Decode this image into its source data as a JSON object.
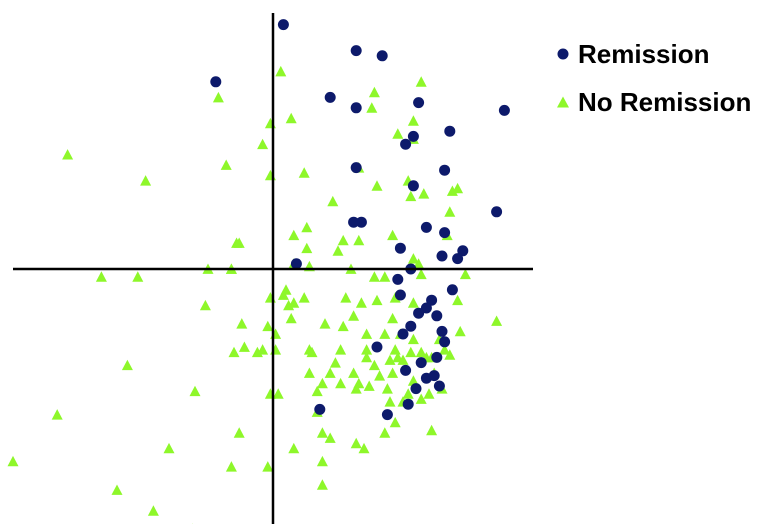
{
  "colors": {
    "remission": "#0d1a6b",
    "no_remission": "#8ef72a",
    "axes": "#000000",
    "background": "#ffffff"
  },
  "legend": {
    "items": [
      {
        "label": "Remission",
        "marker": "circle",
        "color": "#0d1a6b"
      },
      {
        "label": "No Remission",
        "marker": "triangle",
        "color": "#8ef72a"
      }
    ],
    "position": "top-right"
  },
  "chart_data": {
    "type": "scatter",
    "title": "",
    "xlabel": "",
    "ylabel": "",
    "grid": false,
    "axes": "crosshair through origin, no tick labels",
    "xlim": [
      -10,
      10.4
    ],
    "ylim": [
      -10,
      10.4
    ],
    "series": [
      {
        "name": "Remission",
        "marker": "circle",
        "color": "#0d1a6b",
        "points": [
          [
            0.4,
            9.4
          ],
          [
            -2.2,
            7.2
          ],
          [
            3.2,
            8.4
          ],
          [
            4.2,
            8.2
          ],
          [
            2.2,
            6.6
          ],
          [
            3.2,
            6.2
          ],
          [
            5.6,
            6.4
          ],
          [
            8.9,
            6.1
          ],
          [
            5.4,
            5.1
          ],
          [
            5.1,
            4.8
          ],
          [
            6.8,
            5.3
          ],
          [
            3.2,
            3.9
          ],
          [
            5.4,
            3.2
          ],
          [
            6.6,
            3.8
          ],
          [
            8.6,
            2.2
          ],
          [
            3.4,
            1.8
          ],
          [
            3.1,
            1.8
          ],
          [
            5.9,
            1.6
          ],
          [
            6.6,
            1.4
          ],
          [
            4.9,
            0.8
          ],
          [
            7.3,
            0.7
          ],
          [
            7.1,
            0.4
          ],
          [
            6.5,
            0.5
          ],
          [
            0.9,
            0.2
          ],
          [
            5.3,
            0
          ],
          [
            4.8,
            -0.4
          ],
          [
            6.9,
            -0.8
          ],
          [
            4.9,
            -1
          ],
          [
            6.1,
            -1.2
          ],
          [
            5.9,
            -1.5
          ],
          [
            5.6,
            -1.7
          ],
          [
            6.3,
            -1.8
          ],
          [
            6.5,
            -2.4
          ],
          [
            5.3,
            -2.2
          ],
          [
            5.0,
            -2.5
          ],
          [
            4.0,
            -3.0
          ],
          [
            6.6,
            -2.8
          ],
          [
            6.3,
            -3.4
          ],
          [
            5.7,
            -3.6
          ],
          [
            5.1,
            -3.9
          ],
          [
            5.9,
            -4.2
          ],
          [
            6.2,
            -4.1
          ],
          [
            6.4,
            -4.5
          ],
          [
            5.5,
            -4.6
          ],
          [
            5.2,
            -5.2
          ],
          [
            1.8,
            -5.4
          ],
          [
            4.4,
            -5.6
          ]
        ]
      },
      {
        "name": "No Remission",
        "marker": "triangle",
        "color": "#8ef72a",
        "points": [
          [
            -7.9,
            4.4
          ],
          [
            -4.9,
            3.4
          ],
          [
            -2.1,
            6.6
          ],
          [
            0.3,
            7.6
          ],
          [
            -1.8,
            4.0
          ],
          [
            -0.1,
            5.6
          ],
          [
            -0.4,
            4.8
          ],
          [
            0.7,
            5.8
          ],
          [
            -0.1,
            3.6
          ],
          [
            1.2,
            3.7
          ],
          [
            3.8,
            6.2
          ],
          [
            3.9,
            6.8
          ],
          [
            5.7,
            7.2
          ],
          [
            4.8,
            5.2
          ],
          [
            5.4,
            5.7
          ],
          [
            5.4,
            5.0
          ],
          [
            3.3,
            3.9
          ],
          [
            4.0,
            3.2
          ],
          [
            2.3,
            2.6
          ],
          [
            5.8,
            2.9
          ],
          [
            6.9,
            3.0
          ],
          [
            7.1,
            3.1
          ],
          [
            5.3,
            2.8
          ],
          [
            6.8,
            2.2
          ],
          [
            5.2,
            3.4
          ],
          [
            -1.4,
            1.0
          ],
          [
            -1.3,
            1.0
          ],
          [
            0.8,
            1.3
          ],
          [
            1.3,
            1.6
          ],
          [
            1.3,
            0.8
          ],
          [
            2.7,
            1.1
          ],
          [
            3.3,
            1.1
          ],
          [
            2.5,
            0.7
          ],
          [
            4.6,
            1.3
          ],
          [
            6.7,
            1.3
          ],
          [
            5.4,
            0.4
          ],
          [
            0.8,
            0.2
          ],
          [
            3.0,
            0
          ],
          [
            5.6,
            0.2
          ],
          [
            1.4,
            0.1
          ],
          [
            -1.6,
            0
          ],
          [
            -2.5,
            0
          ],
          [
            -5.2,
            -0.3
          ],
          [
            -6.6,
            -0.3
          ],
          [
            -1.6,
            0
          ],
          [
            3.9,
            -0.3
          ],
          [
            4.3,
            -0.3
          ],
          [
            5.7,
            -0.2
          ],
          [
            7.4,
            -0.2
          ],
          [
            0.5,
            -0.8
          ],
          [
            1.2,
            -1.1
          ],
          [
            4.7,
            -1.1
          ],
          [
            0.6,
            -1.4
          ],
          [
            -0.1,
            -1.1
          ],
          [
            0.4,
            -1.0
          ],
          [
            0.8,
            -1.3
          ],
          [
            2.8,
            -1.1
          ],
          [
            3.4,
            -1.3
          ],
          [
            4.0,
            -1.2
          ],
          [
            5.4,
            -1.3
          ],
          [
            -2.6,
            -1.4
          ],
          [
            7.1,
            -1.2
          ],
          [
            4.6,
            -1.9
          ],
          [
            3.1,
            -1.8
          ],
          [
            -1.2,
            -2.1
          ],
          [
            0.7,
            -1.9
          ],
          [
            2.0,
            -2.1
          ],
          [
            2.7,
            -2.2
          ],
          [
            -0.2,
            -2.2
          ],
          [
            0.1,
            -2.5
          ],
          [
            3.6,
            -2.5
          ],
          [
            4.3,
            -2.5
          ],
          [
            4.9,
            -2.5
          ],
          [
            5.4,
            -2.7
          ],
          [
            6.4,
            -2.7
          ],
          [
            7.2,
            -2.4
          ],
          [
            8.6,
            -2.0
          ],
          [
            0.1,
            -3.1
          ],
          [
            -1.1,
            -3.0
          ],
          [
            -0.4,
            -3.1
          ],
          [
            1.4,
            -3.1
          ],
          [
            2.6,
            -3.1
          ],
          [
            3.6,
            -3.1
          ],
          [
            4.7,
            -3.1
          ],
          [
            5.7,
            -3.2
          ],
          [
            6.6,
            -3.1
          ],
          [
            -1.5,
            -3.2
          ],
          [
            -0.6,
            -3.2
          ],
          [
            1.5,
            -3.2
          ],
          [
            3.6,
            -3.4
          ],
          [
            4.8,
            -3.4
          ],
          [
            5.3,
            -3.2
          ],
          [
            6.1,
            -3.4
          ],
          [
            6.8,
            -3.3
          ],
          [
            2.4,
            -3.6
          ],
          [
            3.9,
            -3.7
          ],
          [
            4.5,
            -3.5
          ],
          [
            5.0,
            -3.5
          ],
          [
            5.9,
            -3.4
          ],
          [
            -5.6,
            -3.7
          ],
          [
            2.2,
            -4.0
          ],
          [
            1.4,
            -4.0
          ],
          [
            3.1,
            -4.0
          ],
          [
            4.1,
            -4.1
          ],
          [
            4.6,
            -4.0
          ],
          [
            5.4,
            -4.3
          ],
          [
            6.2,
            -4.0
          ],
          [
            1.9,
            -4.4
          ],
          [
            2.6,
            -4.4
          ],
          [
            3.3,
            -4.4
          ],
          [
            4.4,
            -4.6
          ],
          [
            5.2,
            -4.8
          ],
          [
            6.0,
            -4.8
          ],
          [
            6.5,
            -4.6
          ],
          [
            -3.0,
            -4.7
          ],
          [
            -0.1,
            -4.8
          ],
          [
            0.2,
            -4.8
          ],
          [
            1.7,
            -4.7
          ],
          [
            3.2,
            -4.6
          ],
          [
            3.7,
            -4.5
          ],
          [
            4.5,
            -5.1
          ],
          [
            5.0,
            -5.1
          ],
          [
            5.7,
            -5.0
          ],
          [
            -8.3,
            -5.6
          ],
          [
            1.7,
            -5.5
          ],
          [
            4.7,
            -5.9
          ],
          [
            -1.3,
            -6.3
          ],
          [
            1.9,
            -6.3
          ],
          [
            4.3,
            -6.3
          ],
          [
            6.1,
            -6.2
          ],
          [
            2.2,
            -6.5
          ],
          [
            -4.0,
            -6.9
          ],
          [
            0.8,
            -6.9
          ],
          [
            3.2,
            -6.7
          ],
          [
            3.5,
            -6.9
          ],
          [
            -10.0,
            -7.4
          ],
          [
            -1.6,
            -7.6
          ],
          [
            -0.2,
            -7.6
          ],
          [
            1.9,
            -7.4
          ],
          [
            -6.0,
            -8.5
          ],
          [
            1.9,
            -8.3
          ],
          [
            -4.6,
            -9.3
          ],
          [
            -3.1,
            -10.0
          ]
        ]
      }
    ]
  }
}
